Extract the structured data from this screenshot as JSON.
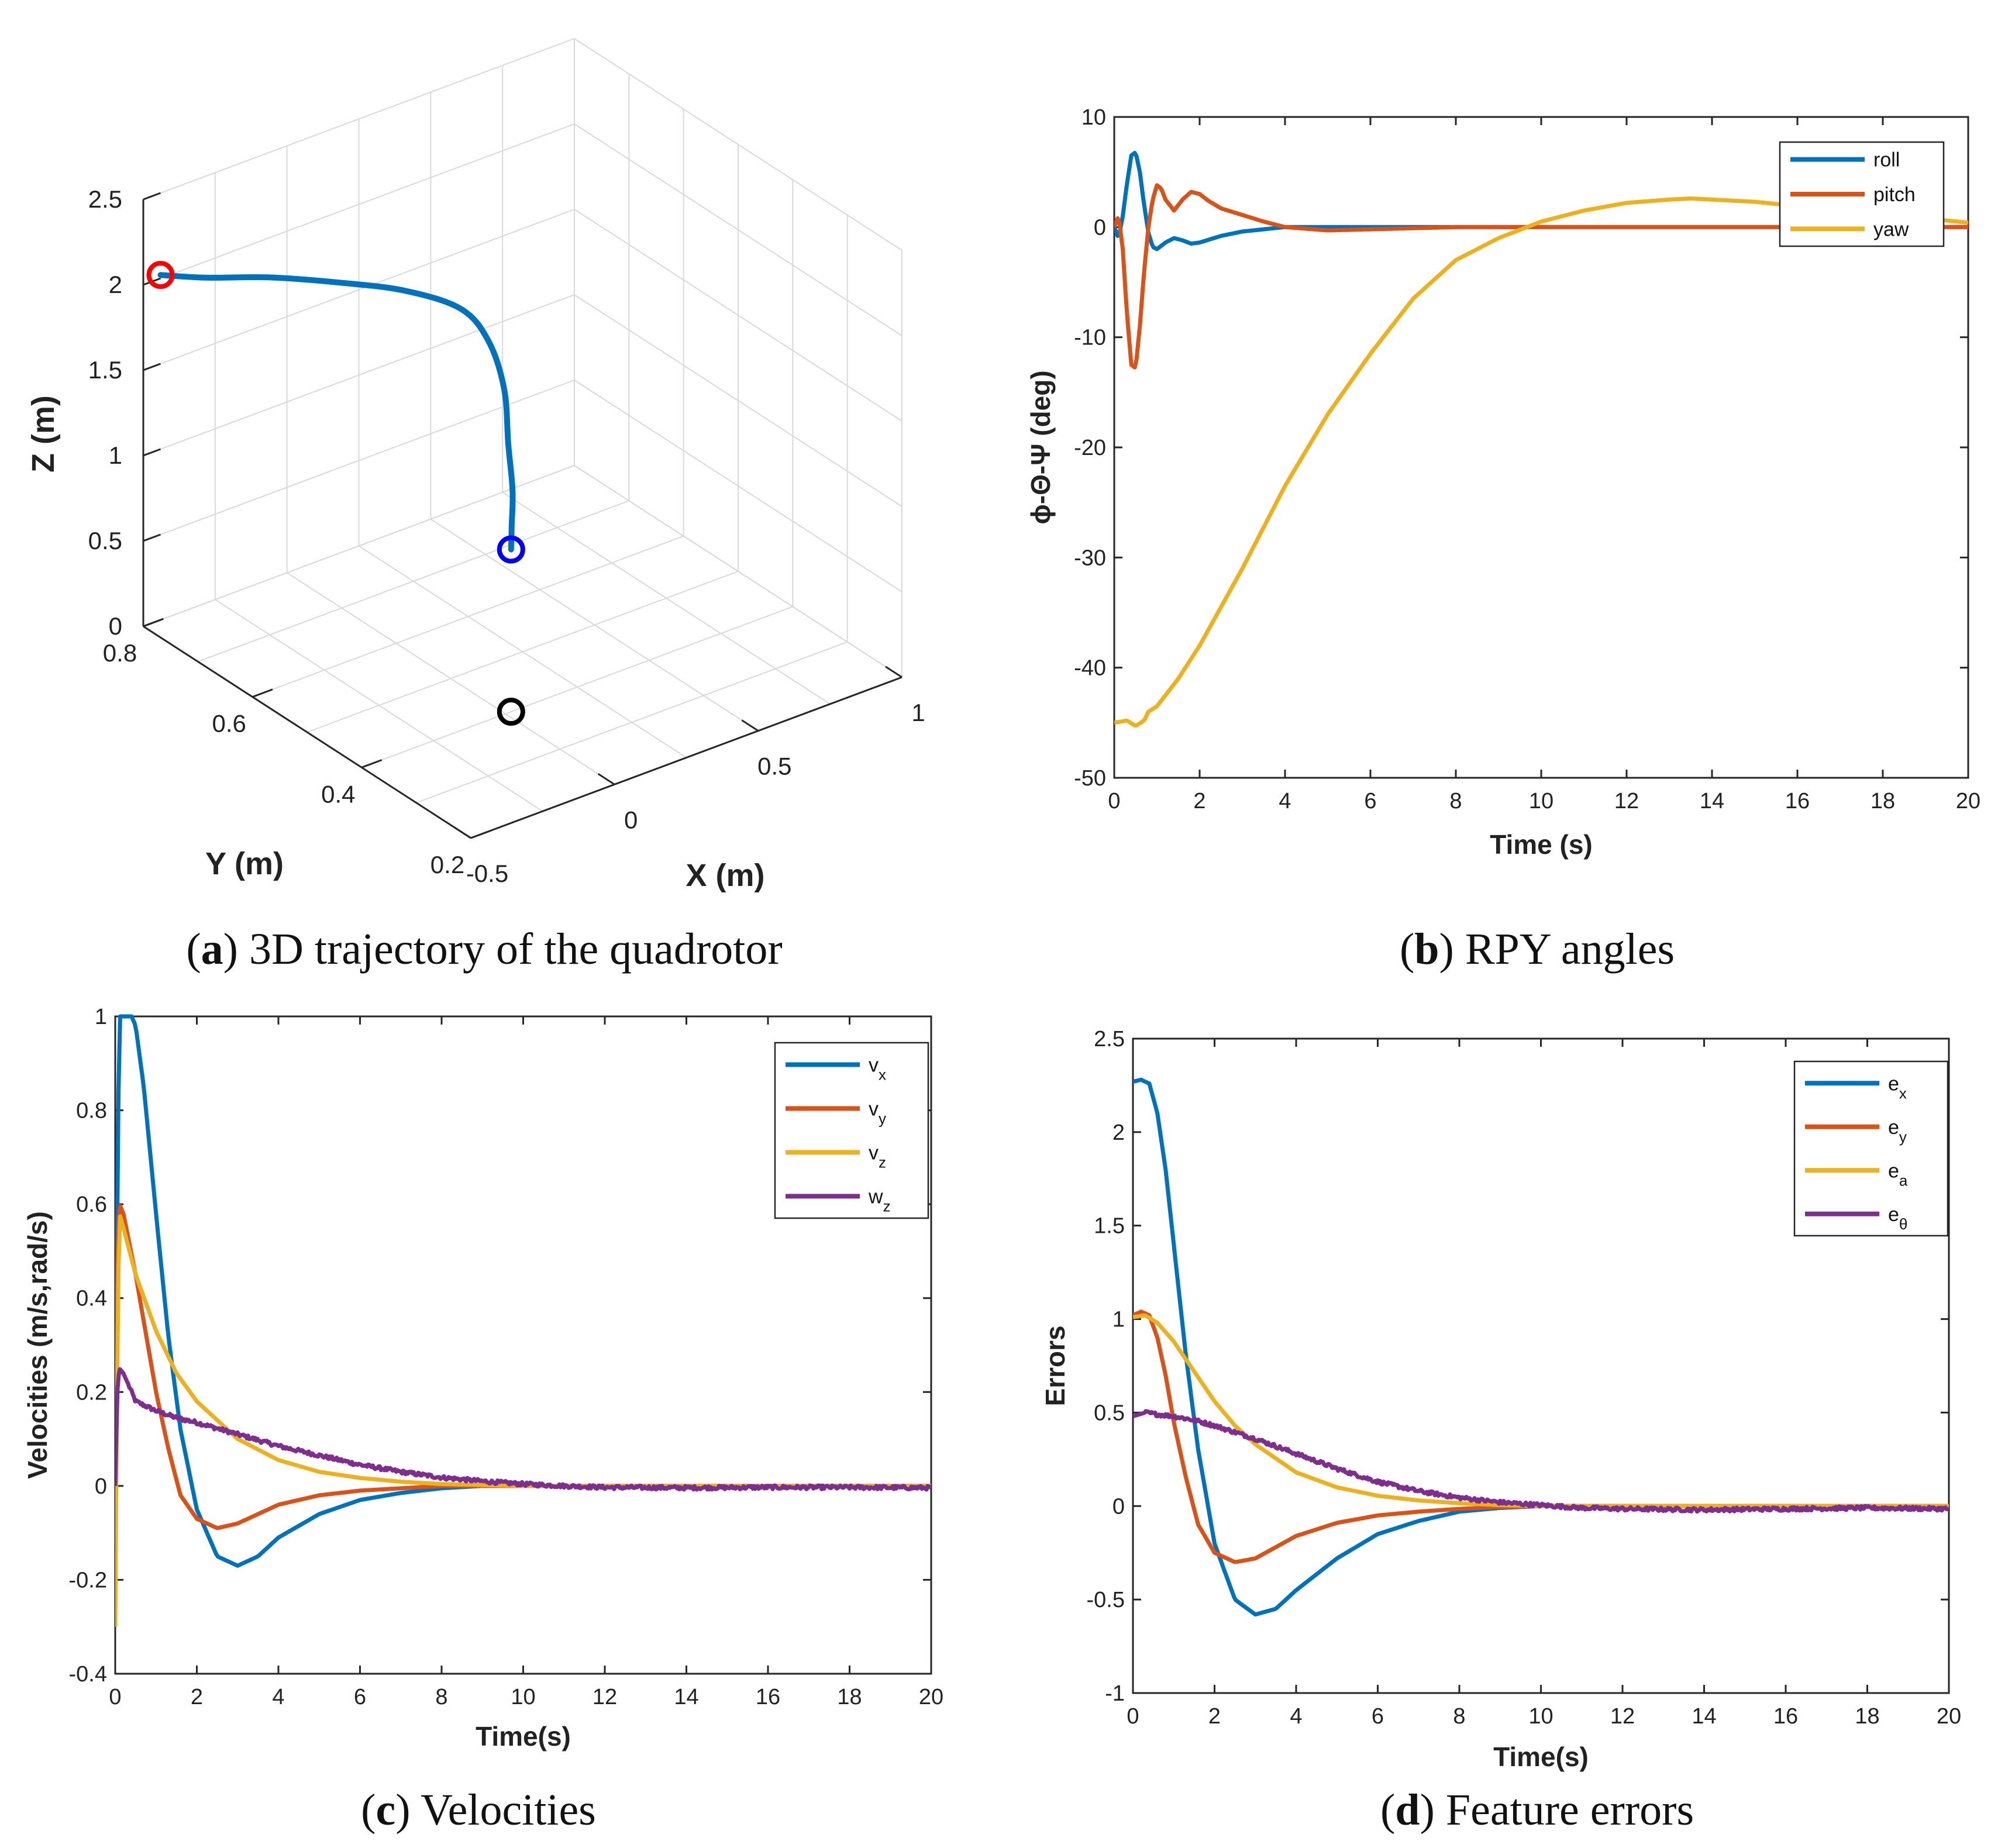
{
  "figure": {
    "captions": [
      {
        "letter": "a",
        "open": "(",
        "close": ")",
        "text": " 3D trajectory of the quadrotor"
      },
      {
        "letter": "b",
        "open": "(",
        "close": ")",
        "text": " RPY angles"
      },
      {
        "letter": "c",
        "open": "(",
        "close": ")",
        "text": " Velocities"
      },
      {
        "letter": "d",
        "open": "(",
        "close": ")",
        "text": " Feature errors"
      }
    ]
  },
  "chart_data": [
    {
      "type": "line",
      "id": "a",
      "title": "3D trajectory of the quadrotor",
      "xlabel": "X (m)",
      "ylabel": "Y (m)",
      "zlabel": "Z (m)",
      "xlim": [
        -0.5,
        1
      ],
      "ylim": [
        0.2,
        0.8
      ],
      "zlim": [
        0,
        2.5
      ],
      "xticks": [
        "-0.5",
        "0",
        "0.5",
        "1"
      ],
      "yticks": [
        "0.2",
        "0.4",
        "0.6",
        "0.8"
      ],
      "zticks": [
        "0",
        "0.5",
        "1",
        "1.5",
        "2",
        "2.5"
      ],
      "grid": true,
      "series": [
        {
          "name": "trajectory",
          "color": "#0072BD",
          "points": [
            [
              0.02,
              0.4,
              0.95
            ],
            [
              0.06,
              0.42,
              1.02
            ],
            [
              0.12,
              0.45,
              1.13
            ],
            [
              0.2,
              0.5,
              1.25
            ],
            [
              0.3,
              0.56,
              1.38
            ],
            [
              0.36,
              0.62,
              1.5
            ],
            [
              0.34,
              0.66,
              1.62
            ],
            [
              0.22,
              0.7,
              1.72
            ],
            [
              0.04,
              0.73,
              1.82
            ],
            [
              -0.14,
              0.76,
              1.9
            ],
            [
              -0.32,
              0.78,
              1.97
            ],
            [
              -0.44,
              0.8,
              2.02
            ]
          ]
        }
      ],
      "markers": [
        {
          "name": "start",
          "color": "#FF0000",
          "point": [
            -0.44,
            0.8,
            2.02
          ]
        },
        {
          "name": "end",
          "color": "#0000FF",
          "point": [
            0.02,
            0.4,
            0.95
          ]
        },
        {
          "name": "ground",
          "color": "#000000",
          "point": [
            0.02,
            0.4,
            0.0
          ]
        }
      ]
    },
    {
      "type": "line",
      "id": "b",
      "title": "RPY angles",
      "xlabel": "Time (s)",
      "ylabel": "ϕ-Θ-Ψ (deg)",
      "xlim": [
        0,
        20
      ],
      "ylim": [
        -50,
        10
      ],
      "xticks": [
        "0",
        "2",
        "4",
        "6",
        "8",
        "10",
        "12",
        "14",
        "16",
        "18",
        "20"
      ],
      "yticks": [
        "-50",
        "-40",
        "-30",
        "-20",
        "-10",
        "0",
        "10"
      ],
      "grid": false,
      "legend": "top-right",
      "series": [
        {
          "name": "roll",
          "color": "#0072BD",
          "x": [
            0,
            0.1,
            0.2,
            0.3,
            0.4,
            0.5,
            0.6,
            0.7,
            0.8,
            0.9,
            1.0,
            1.2,
            1.4,
            1.6,
            1.8,
            2.0,
            2.5,
            3.0,
            3.5,
            4.0,
            5.0,
            6.0,
            8.0,
            10.0,
            12.0,
            14.0,
            16.0,
            18.0,
            20.0
          ],
          "y": [
            0,
            -1,
            1,
            4,
            6.5,
            6.8,
            5,
            2,
            -0.5,
            -1.8,
            -2,
            -1.4,
            -1,
            -1.2,
            -1.5,
            -1.4,
            -0.8,
            -0.4,
            -0.2,
            0,
            0,
            0,
            0,
            0,
            0,
            0,
            0,
            0,
            0
          ]
        },
        {
          "name": "pitch",
          "color": "#D95319",
          "x": [
            0,
            0.1,
            0.2,
            0.3,
            0.4,
            0.5,
            0.6,
            0.7,
            0.8,
            0.9,
            1.0,
            1.1,
            1.2,
            1.4,
            1.6,
            1.8,
            2.0,
            2.2,
            2.5,
            3.0,
            3.5,
            4.0,
            5.0,
            6.0,
            8.0,
            10.0,
            12.0,
            14.0,
            16.0,
            18.0,
            20.0
          ],
          "y": [
            0,
            1,
            -2,
            -8,
            -12.5,
            -12.8,
            -9,
            -4,
            0,
            2.5,
            3.8,
            3.5,
            2.5,
            1.5,
            2.5,
            3.2,
            3,
            2.4,
            1.7,
            1.1,
            0.5,
            0,
            -0.3,
            -0.2,
            0,
            0,
            0,
            0,
            0,
            0,
            0
          ]
        },
        {
          "name": "yaw",
          "color": "#EDB120",
          "x": [
            0,
            0.3,
            0.5,
            0.7,
            0.8,
            1.0,
            1.5,
            2.0,
            3.0,
            4.0,
            5.0,
            6.0,
            7.0,
            8.0,
            9.0,
            10.0,
            11.0,
            12.0,
            13.0,
            13.5,
            14.0,
            15.0,
            16.0,
            17.0,
            18.0,
            19.0,
            20.0
          ],
          "y": [
            -45,
            -44.8,
            -45.3,
            -44.8,
            -44,
            -43.5,
            -41,
            -38,
            -31,
            -23.5,
            -17,
            -11.5,
            -6.5,
            -3,
            -1,
            0.5,
            1.5,
            2.2,
            2.5,
            2.6,
            2.5,
            2.3,
            1.9,
            1.5,
            1.1,
            0.8,
            0.4
          ]
        }
      ]
    },
    {
      "type": "line",
      "id": "c",
      "title": "Velocities",
      "xlabel": "Time(s)",
      "ylabel": "Velocities (m/s,rad/s)",
      "xlim": [
        0,
        20
      ],
      "ylim": [
        -0.4,
        1
      ],
      "xticks": [
        "0",
        "2",
        "4",
        "6",
        "8",
        "10",
        "12",
        "14",
        "16",
        "18",
        "20"
      ],
      "yticks": [
        "-0.4",
        "-0.2",
        "0",
        "0.2",
        "0.4",
        "0.6",
        "0.8",
        "1"
      ],
      "grid": false,
      "legend": "top-right",
      "series": [
        {
          "name": "vx",
          "label_main": "v",
          "label_sub": "x",
          "color": "#0072BD",
          "x": [
            0,
            0.05,
            0.1,
            0.15,
            0.3,
            0.4,
            0.5,
            0.7,
            1.0,
            1.3,
            1.6,
            2.0,
            2.5,
            3.0,
            3.5,
            4.0,
            5.0,
            6.0,
            7.0,
            8.0,
            9.0,
            10.0,
            12.0,
            14.0,
            16.0,
            18.0,
            20.0
          ],
          "y": [
            0,
            0.6,
            1,
            1,
            1,
            1,
            0.98,
            0.85,
            0.58,
            0.32,
            0.12,
            -0.05,
            -0.15,
            -0.17,
            -0.15,
            -0.11,
            -0.06,
            -0.03,
            -0.015,
            -0.005,
            0,
            0,
            0,
            0,
            0,
            0,
            0
          ]
        },
        {
          "name": "vy",
          "label_main": "v",
          "label_sub": "y",
          "color": "#D95319",
          "x": [
            0,
            0.05,
            0.1,
            0.2,
            0.5,
            0.8,
            1.0,
            1.3,
            1.6,
            2.0,
            2.5,
            3.0,
            3.5,
            4.0,
            5.0,
            6.0,
            7.0,
            8.0,
            9.0,
            10.0,
            12.0,
            14.0,
            16.0,
            18.0,
            20.0
          ],
          "y": [
            0,
            0.5,
            0.6,
            0.58,
            0.45,
            0.3,
            0.2,
            0.08,
            -0.02,
            -0.07,
            -0.09,
            -0.08,
            -0.06,
            -0.04,
            -0.02,
            -0.01,
            -0.005,
            0,
            0,
            0,
            0,
            0,
            0,
            0,
            0
          ]
        },
        {
          "name": "vz",
          "label_main": "v",
          "label_sub": "z",
          "color": "#EDB120",
          "x": [
            0,
            0.05,
            0.1,
            0.2,
            0.5,
            1.0,
            1.5,
            2.0,
            3.0,
            4.0,
            5.0,
            6.0,
            7.0,
            8.0,
            9.0,
            10.0,
            12.0,
            14.0,
            16.0,
            18.0,
            20.0
          ],
          "y": [
            -0.3,
            0.3,
            0.58,
            0.55,
            0.45,
            0.33,
            0.24,
            0.18,
            0.1,
            0.055,
            0.03,
            0.017,
            0.009,
            0.004,
            0.002,
            0,
            0,
            0,
            0,
            0,
            0
          ]
        },
        {
          "name": "wz",
          "label_main": "w",
          "label_sub": "z",
          "color": "#7E2F8E",
          "noise": 0.004,
          "x": [
            0,
            0.05,
            0.1,
            0.2,
            0.5,
            1.0,
            1.5,
            2.0,
            3.0,
            4.0,
            5.0,
            6.0,
            7.0,
            8.0,
            9.0,
            10.0,
            11.0,
            12.0,
            14.0,
            16.0,
            18.0,
            20.0
          ],
          "y": [
            0,
            0.2,
            0.25,
            0.24,
            0.18,
            0.16,
            0.145,
            0.135,
            0.11,
            0.085,
            0.065,
            0.045,
            0.03,
            0.018,
            0.01,
            0.004,
            0,
            -0.003,
            -0.004,
            -0.003,
            -0.003,
            -0.004
          ]
        }
      ]
    },
    {
      "type": "line",
      "id": "d",
      "title": "Feature errors",
      "xlabel": "Time(s)",
      "ylabel": "Errors",
      "xlim": [
        0,
        20
      ],
      "ylim": [
        -1,
        2.5
      ],
      "xticks": [
        "0",
        "2",
        "4",
        "6",
        "8",
        "10",
        "12",
        "14",
        "16",
        "18",
        "20"
      ],
      "yticks": [
        "-1",
        "-0.5",
        "0",
        "0.5",
        "1",
        "1.5",
        "2",
        "2.5"
      ],
      "grid": false,
      "legend": "top-right",
      "series": [
        {
          "name": "ex",
          "label_main": "e",
          "label_sub": "x",
          "color": "#0072BD",
          "x": [
            0,
            0.2,
            0.4,
            0.6,
            0.8,
            1.0,
            1.3,
            1.6,
            2.0,
            2.5,
            3.0,
            3.5,
            4.0,
            5.0,
            6.0,
            7.0,
            8.0,
            9.0,
            10.0,
            12.0,
            14.0,
            16.0,
            18.0,
            20.0
          ],
          "y": [
            2.27,
            2.28,
            2.26,
            2.1,
            1.8,
            1.4,
            0.8,
            0.3,
            -0.2,
            -0.5,
            -0.58,
            -0.55,
            -0.45,
            -0.28,
            -0.15,
            -0.08,
            -0.03,
            -0.01,
            0,
            0,
            0,
            0,
            0,
            0
          ]
        },
        {
          "name": "ey",
          "label_main": "e",
          "label_sub": "y",
          "color": "#D95319",
          "x": [
            0,
            0.2,
            0.4,
            0.6,
            0.8,
            1.0,
            1.3,
            1.6,
            2.0,
            2.5,
            3.0,
            3.5,
            4.0,
            5.0,
            6.0,
            7.0,
            8.0,
            9.0,
            10.0,
            12.0,
            14.0,
            16.0,
            18.0,
            20.0
          ],
          "y": [
            1.02,
            1.04,
            1.02,
            0.9,
            0.7,
            0.45,
            0.15,
            -0.1,
            -0.25,
            -0.3,
            -0.28,
            -0.22,
            -0.16,
            -0.09,
            -0.05,
            -0.03,
            -0.015,
            -0.005,
            0,
            0,
            0,
            0,
            0,
            0
          ]
        },
        {
          "name": "ea",
          "label_main": "e",
          "label_sub": "a",
          "color": "#EDB120",
          "x": [
            0,
            0.3,
            0.6,
            1.0,
            1.5,
            2.0,
            2.5,
            3.0,
            4.0,
            5.0,
            6.0,
            7.0,
            8.0,
            9.0,
            10.0,
            12.0,
            14.0,
            16.0,
            18.0,
            20.0
          ],
          "y": [
            1.01,
            1.02,
            0.98,
            0.88,
            0.72,
            0.56,
            0.43,
            0.33,
            0.18,
            0.1,
            0.055,
            0.03,
            0.015,
            0.005,
            0,
            0,
            0,
            0,
            0,
            0
          ]
        },
        {
          "name": "etheta",
          "label_main": "e",
          "label_sub": "θ",
          "color": "#7E2F8E",
          "noise": 0.01,
          "x": [
            0,
            0.3,
            0.6,
            1.0,
            1.5,
            2.0,
            3.0,
            4.0,
            5.0,
            6.0,
            7.0,
            8.0,
            9.0,
            10.0,
            11.0,
            12.0,
            14.0,
            16.0,
            18.0,
            20.0
          ],
          "y": [
            0.48,
            0.5,
            0.49,
            0.48,
            0.46,
            0.43,
            0.36,
            0.28,
            0.2,
            0.13,
            0.08,
            0.045,
            0.02,
            0.005,
            -0.01,
            -0.015,
            -0.02,
            -0.015,
            -0.01,
            -0.015
          ]
        }
      ]
    }
  ]
}
